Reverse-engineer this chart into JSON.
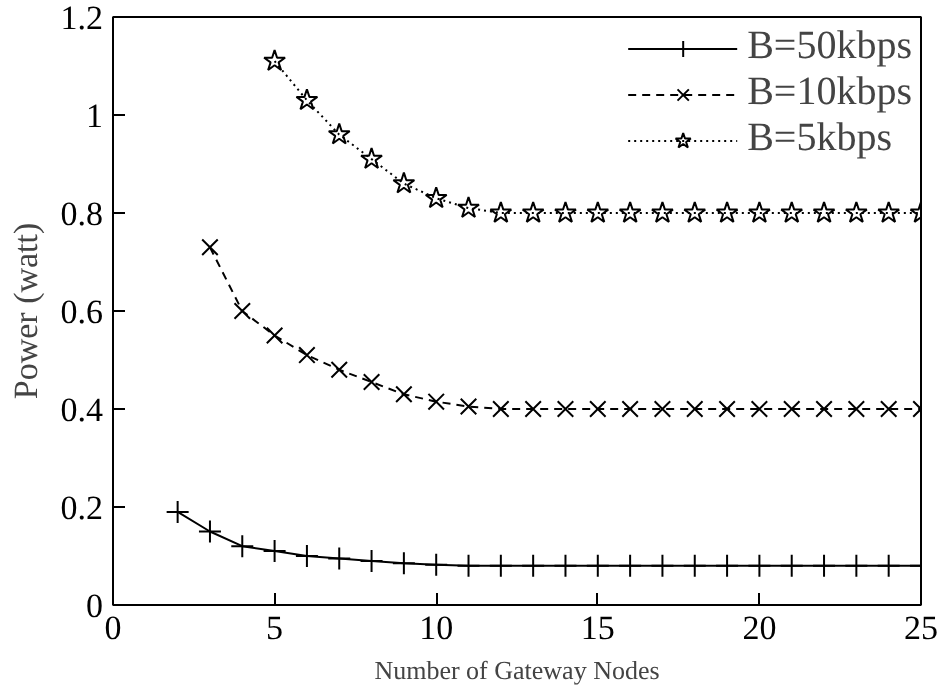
{
  "chart_data": {
    "type": "line",
    "xlabel": "Number of Gateway Nodes",
    "ylabel": "Power (watt)",
    "xlim": [
      0,
      25
    ],
    "xticks": [
      0,
      5,
      10,
      15,
      20,
      25
    ],
    "ylim": [
      0,
      1.2
    ],
    "yticks": [
      0,
      0.2,
      0.4,
      0.6,
      0.8,
      1,
      1.2
    ],
    "grid": false,
    "legend": "top right",
    "series": [
      {
        "name": "B=50kbps",
        "color": "#000000",
        "marker": "cross",
        "line_style": "solid",
        "x": [
          2,
          3,
          4,
          5,
          6,
          7,
          8,
          9,
          10,
          11,
          12,
          13,
          14,
          15,
          16,
          17,
          18,
          19,
          20,
          21,
          22,
          23,
          24,
          25
        ],
        "values": [
          0.19,
          0.15,
          0.12,
          0.11,
          0.1,
          0.095,
          0.09,
          0.085,
          0.082,
          0.08,
          0.08,
          0.08,
          0.08,
          0.08,
          0.08,
          0.08,
          0.08,
          0.08,
          0.08,
          0.08,
          0.08,
          0.08,
          0.08,
          0.08
        ]
      },
      {
        "name": "B=10kbps",
        "color": "#000000",
        "marker": "x",
        "line_style": "dashed",
        "x": [
          3,
          4,
          5,
          6,
          7,
          8,
          9,
          10,
          11,
          12,
          13,
          14,
          15,
          16,
          17,
          18,
          19,
          20,
          21,
          22,
          23,
          24,
          25
        ],
        "values": [
          0.73,
          0.6,
          0.55,
          0.51,
          0.48,
          0.455,
          0.43,
          0.415,
          0.405,
          0.4,
          0.4,
          0.4,
          0.4,
          0.4,
          0.4,
          0.4,
          0.4,
          0.4,
          0.4,
          0.4,
          0.4,
          0.4,
          0.4
        ]
      },
      {
        "name": "B=5kbps",
        "color": "#000000",
        "marker": "star",
        "line_style": "dotted",
        "x": [
          5,
          6,
          7,
          8,
          9,
          10,
          11,
          12,
          13,
          14,
          15,
          16,
          17,
          18,
          19,
          20,
          21,
          22,
          23,
          24,
          25
        ],
        "values": [
          1.11,
          1.03,
          0.96,
          0.91,
          0.86,
          0.83,
          0.81,
          0.8,
          0.8,
          0.8,
          0.8,
          0.8,
          0.8,
          0.8,
          0.8,
          0.8,
          0.8,
          0.8,
          0.8,
          0.8,
          0.8
        ]
      }
    ]
  }
}
